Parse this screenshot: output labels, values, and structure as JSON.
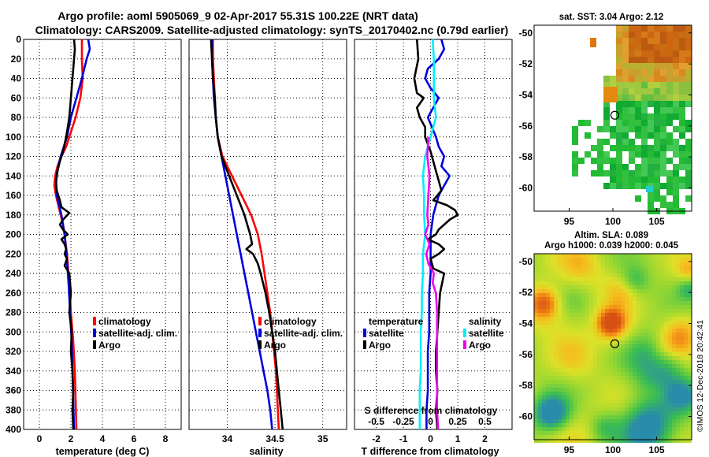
{
  "title": {
    "line1": "Argo profile: aoml 5905069_9 02-Apr-2017 55.31S 100.22E (NRT data)",
    "line2": "Climatology: CARS2009. Satellite-adjusted climatology: synTS_20170402.nc (0.79d earlier)"
  },
  "credit": "©IMOS 12-Dec-2018 20:42:41",
  "colors": {
    "climatology": "#ff0000",
    "satellite": "#0000dd",
    "argo": "#000000",
    "salinity_sat": "#00eeff",
    "salinity_argo": "#ee00ee"
  },
  "chart_data": [
    {
      "type": "line",
      "panel": "temperature",
      "xlabel": "temperature (deg C)",
      "ylabel": "",
      "xlim": [
        -1,
        9
      ],
      "ylim": [
        400,
        0
      ],
      "xticks": [
        "0",
        "2",
        "4",
        "6",
        "8"
      ],
      "yticks": [
        "0",
        "20",
        "40",
        "60",
        "80",
        "100",
        "120",
        "140",
        "160",
        "180",
        "200",
        "220",
        "240",
        "260",
        "280",
        "300",
        "320",
        "340",
        "360",
        "380",
        "400"
      ],
      "legend": [
        "climatology",
        "satellite-adj. clim.",
        "Argo"
      ],
      "series": [
        {
          "name": "climatology",
          "color": "#ff0000",
          "depth": [
            0,
            20,
            40,
            60,
            80,
            100,
            110,
            120,
            130,
            140,
            150,
            160,
            170,
            180,
            190,
            200,
            220,
            250,
            280,
            310,
            340,
            370,
            400
          ],
          "values": [
            2.7,
            2.7,
            2.75,
            2.6,
            2.3,
            1.9,
            1.7,
            1.4,
            1.15,
            1.0,
            0.95,
            1.05,
            1.2,
            1.35,
            1.5,
            1.6,
            1.75,
            1.9,
            2.0,
            2.15,
            2.25,
            2.3,
            2.35
          ]
        },
        {
          "name": "satellite-adj. clim.",
          "color": "#0000dd",
          "depth": [
            0,
            10,
            20,
            40,
            60,
            80,
            100,
            110,
            120,
            130,
            140,
            150,
            160,
            170,
            180,
            190,
            200,
            220,
            250,
            280,
            310,
            340,
            370,
            400
          ],
          "values": [
            3.1,
            3.2,
            3.0,
            2.7,
            2.35,
            2.0,
            1.75,
            1.55,
            1.35,
            1.2,
            1.1,
            1.05,
            1.1,
            1.25,
            1.4,
            1.5,
            1.6,
            1.72,
            1.85,
            1.95,
            2.05,
            2.1,
            2.15,
            2.2
          ]
        },
        {
          "name": "Argo",
          "color": "#000000",
          "depth": [
            0,
            10,
            20,
            40,
            60,
            80,
            100,
            115,
            125,
            135,
            145,
            155,
            165,
            172,
            178,
            185,
            190,
            195,
            200,
            205,
            210,
            215,
            220,
            225,
            232,
            240,
            260,
            280,
            300,
            320,
            340,
            360,
            380,
            400
          ],
          "values": [
            2.2,
            2.25,
            2.2,
            2.1,
            2.0,
            1.9,
            1.7,
            1.5,
            1.3,
            1.15,
            1.05,
            1.1,
            1.3,
            1.4,
            1.9,
            1.5,
            1.3,
            1.5,
            1.8,
            1.4,
            1.6,
            1.7,
            1.6,
            1.75,
            1.6,
            1.9,
            2.0,
            1.9,
            2.05,
            2.0,
            2.1,
            2.15,
            2.1,
            2.15
          ]
        }
      ]
    },
    {
      "type": "line",
      "panel": "salinity",
      "xlabel": "salinity",
      "ylabel": "",
      "xlim": [
        33.6,
        35.25
      ],
      "ylim": [
        400,
        0
      ],
      "xticks": [
        "34",
        "34.5",
        "35"
      ],
      "legend": [
        "climatology",
        "satellite-adj. clim.",
        "Argo"
      ],
      "series": [
        {
          "name": "climatology",
          "color": "#ff0000",
          "depth": [
            0,
            20,
            40,
            60,
            80,
            100,
            120,
            140,
            160,
            180,
            200,
            220,
            240,
            260,
            280,
            300,
            320,
            340,
            360,
            380,
            400
          ],
          "values": [
            33.85,
            33.85,
            33.86,
            33.87,
            33.88,
            33.9,
            33.95,
            34.05,
            34.15,
            34.25,
            34.32,
            34.36,
            34.39,
            34.42,
            34.45,
            34.47,
            34.49,
            34.51,
            34.52,
            34.53,
            34.54
          ]
        },
        {
          "name": "satellite-adj. clim.",
          "color": "#0000dd",
          "depth": [
            0,
            20,
            40,
            60,
            80,
            100,
            120,
            140,
            160,
            180,
            200,
            220,
            240,
            260,
            280,
            300,
            320,
            340,
            360,
            380,
            400
          ],
          "values": [
            33.84,
            33.84,
            33.85,
            33.86,
            33.88,
            33.9,
            33.94,
            33.98,
            34.02,
            34.06,
            34.1,
            34.14,
            34.18,
            34.22,
            34.26,
            34.3,
            34.34,
            34.38,
            34.42,
            34.45,
            34.47
          ]
        },
        {
          "name": "Argo",
          "color": "#000000",
          "depth": [
            0,
            20,
            40,
            60,
            80,
            100,
            120,
            140,
            160,
            170,
            180,
            190,
            200,
            210,
            215,
            220,
            230,
            240,
            260,
            280,
            300,
            320,
            340,
            360,
            380,
            400
          ],
          "values": [
            33.83,
            33.84,
            33.85,
            33.87,
            33.88,
            33.9,
            33.94,
            34.02,
            34.1,
            34.14,
            34.18,
            34.21,
            34.24,
            34.26,
            34.2,
            34.27,
            34.32,
            34.35,
            34.4,
            34.44,
            34.47,
            34.5,
            34.52,
            34.54,
            34.56,
            34.58
          ]
        }
      ]
    },
    {
      "type": "line",
      "panel": "difference",
      "xlabel": "T difference from climatology",
      "x2label": "S difference from climatology",
      "xlim": [
        -2.8,
        3.0
      ],
      "x2lim": [
        -0.7,
        0.75
      ],
      "ylim": [
        400,
        0
      ],
      "xticks": [
        "-2",
        "-1",
        "0",
        "1",
        "2"
      ],
      "x2ticks": [
        "-0.5",
        "-0.25",
        "0",
        "0.25",
        "0.5"
      ],
      "legend_temperature": {
        "header": "temperature",
        "items": [
          "satellite",
          "Argo"
        ]
      },
      "legend_salinity": {
        "header": "salinity",
        "items": [
          "satellite",
          "Argo"
        ]
      },
      "series": [
        {
          "name": "temperature satellite",
          "color": "#0000dd",
          "axis": "T",
          "depth": [
            0,
            10,
            20,
            30,
            40,
            50,
            60,
            70,
            80,
            90,
            100,
            110,
            120,
            130,
            140,
            150,
            160,
            170,
            180,
            200,
            220,
            240,
            260,
            280,
            300,
            320,
            340,
            360,
            380,
            400
          ],
          "values": [
            0.4,
            0.5,
            0.3,
            -0.1,
            -0.2,
            0.0,
            0.3,
            0.1,
            -0.1,
            0.05,
            0.2,
            0.3,
            0.5,
            0.4,
            0.7,
            0.5,
            0.3,
            0.2,
            0.1,
            0.0,
            0.0,
            0.0,
            -0.05,
            -0.05,
            -0.05,
            -0.1,
            -0.1,
            -0.1,
            -0.15,
            -0.15
          ]
        },
        {
          "name": "temperature Argo",
          "color": "#000000",
          "axis": "T",
          "depth": [
            0,
            20,
            40,
            55,
            60,
            70,
            80,
            90,
            100,
            115,
            125,
            135,
            145,
            155,
            165,
            170,
            175,
            180,
            185,
            190,
            195,
            200,
            205,
            210,
            215,
            220,
            225,
            235,
            240,
            260,
            280,
            300,
            320,
            340,
            360,
            380,
            400
          ],
          "values": [
            -0.5,
            -0.45,
            -0.6,
            -0.5,
            -0.25,
            -0.5,
            -0.4,
            -0.2,
            -0.2,
            0.0,
            0.1,
            0.2,
            0.3,
            0.4,
            0.1,
            0.6,
            0.9,
            1.0,
            0.7,
            0.5,
            0.3,
            0.2,
            -0.1,
            0.3,
            0.5,
            0.3,
            0.0,
            0.1,
            0.5,
            0.35,
            0.3,
            0.25,
            0.2,
            0.2,
            0.25,
            0.2,
            0.25
          ]
        },
        {
          "name": "salinity satellite",
          "color": "#00eeff",
          "axis": "S",
          "depth": [
            0,
            20,
            40,
            60,
            80,
            100,
            120,
            140,
            160,
            180,
            200,
            220,
            240,
            260,
            280,
            300,
            320,
            340,
            360,
            380,
            400
          ],
          "values": [
            0.02,
            0.03,
            0.03,
            0.03,
            0.05,
            0.0,
            -0.05,
            -0.07,
            -0.06,
            -0.06,
            -0.05,
            -0.07,
            -0.07,
            -0.08,
            -0.08,
            -0.09,
            -0.09,
            -0.09,
            -0.1,
            -0.1,
            -0.1
          ]
        },
        {
          "name": "salinity Argo",
          "color": "#ee00ee",
          "axis": "S",
          "depth": [
            100,
            120,
            140,
            160,
            180,
            190,
            200,
            205,
            210,
            220,
            230,
            240,
            250,
            260,
            280,
            300,
            320,
            340,
            360,
            380,
            400
          ],
          "values": [
            -0.02,
            -0.03,
            -0.01,
            -0.02,
            -0.03,
            -0.02,
            -0.05,
            -0.03,
            -0.01,
            -0.04,
            -0.02,
            0.03,
            0.02,
            0.05,
            0.06,
            0.06,
            0.06,
            0.06,
            0.06,
            0.06,
            0.07
          ]
        }
      ]
    },
    {
      "type": "heatmap",
      "panel": "sst-map",
      "title": "sat. SST: 3.04 Argo: 2.12",
      "xticks": [
        "95",
        "100",
        "105"
      ],
      "yticks": [
        "-50",
        "-52",
        "-54",
        "-56",
        "-58",
        "-60"
      ],
      "xlim": [
        91,
        109
      ],
      "ylim": [
        -61.5,
        -49.5
      ],
      "marker": {
        "lon": 100.22,
        "lat": -55.31
      }
    },
    {
      "type": "heatmap",
      "panel": "sla-map",
      "title_line1": "Altim. SLA: 0.089",
      "title_line2": "Argo h1000: 0.039 h2000: 0.045",
      "xticks": [
        "95",
        "100",
        "105"
      ],
      "yticks": [
        "-50",
        "-52",
        "-54",
        "-56",
        "-58",
        "-60"
      ],
      "xlim": [
        91,
        109
      ],
      "ylim": [
        -61.5,
        -49.5
      ],
      "marker": {
        "lon": 100.22,
        "lat": -55.31
      }
    }
  ]
}
